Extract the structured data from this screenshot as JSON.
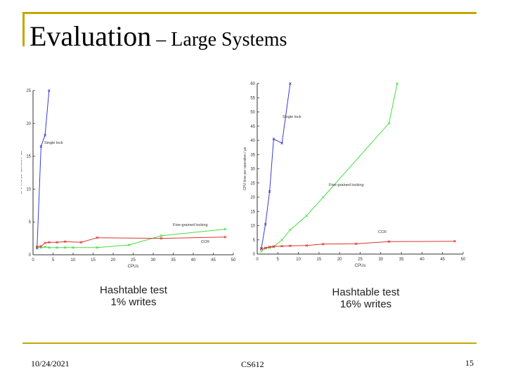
{
  "slide": {
    "title_main": "Evaluation",
    "title_rest": " – Large Systems",
    "caption_left_line1": "Hashtable test",
    "caption_left_line2": "1% writes",
    "caption_right_line1": "Hashtable test",
    "caption_right_line2": "16% writes",
    "footer_date": "10/24/2021",
    "footer_course": "CS612",
    "footer_page": "15"
  },
  "chart_data": [
    {
      "type": "line",
      "title": "",
      "xlabel": "CPUs",
      "ylabel": "CPU time per operation / µs",
      "xlim": [
        0,
        50
      ],
      "ylim": [
        0,
        25
      ],
      "xticks": [
        0,
        5,
        10,
        15,
        20,
        25,
        30,
        35,
        40,
        45,
        50
      ],
      "yticks": [
        0,
        5,
        10,
        15,
        20,
        25
      ],
      "grid": false,
      "series": [
        {
          "name": "Single lock",
          "color": "#3a3ad6",
          "x": [
            1,
            2,
            3,
            4
          ],
          "y": [
            1,
            16.5,
            18.2,
            25
          ]
        },
        {
          "name": "Fine-grained locking",
          "color": "#44dd44",
          "x": [
            1,
            2,
            3,
            4,
            6,
            8,
            10,
            16,
            24,
            32,
            48
          ],
          "y": [
            1.1,
            1.1,
            1.2,
            1.1,
            1.1,
            1.1,
            1.1,
            1.1,
            1.5,
            2.9,
            3.9
          ]
        },
        {
          "name": "CCR",
          "color": "#dd3333",
          "x": [
            1,
            2,
            3,
            4,
            6,
            8,
            12,
            16,
            32,
            48
          ],
          "y": [
            1.2,
            1.3,
            1.8,
            1.9,
            1.9,
            2.0,
            1.9,
            2.6,
            2.5,
            2.7
          ]
        }
      ]
    },
    {
      "type": "line",
      "title": "",
      "xlabel": "CPUs",
      "ylabel": "CPU time per operation / µs",
      "xlim": [
        0,
        50
      ],
      "ylim": [
        0,
        60
      ],
      "xticks": [
        0,
        5,
        10,
        15,
        20,
        25,
        30,
        35,
        40,
        45,
        50
      ],
      "yticks": [
        0,
        5,
        10,
        15,
        20,
        25,
        30,
        35,
        40,
        45,
        50,
        55,
        60
      ],
      "grid": false,
      "series": [
        {
          "name": "Single lock",
          "color": "#3a3ad6",
          "x": [
            1,
            2,
            3,
            4,
            6,
            8
          ],
          "y": [
            2,
            10.5,
            22,
            40.5,
            39,
            60
          ]
        },
        {
          "name": "Fine-grained locking",
          "color": "#44dd44",
          "x": [
            1,
            2,
            3,
            4,
            6,
            8,
            12,
            16,
            32,
            34
          ],
          "y": [
            1,
            2,
            2.3,
            2.5,
            5,
            8.5,
            13.5,
            20,
            46,
            60
          ]
        },
        {
          "name": "CCR",
          "color": "#dd3333",
          "x": [
            1,
            2,
            3,
            4,
            6,
            8,
            12,
            16,
            24,
            32,
            48
          ],
          "y": [
            1.8,
            2.2,
            2.5,
            2.7,
            2.8,
            2.9,
            3.0,
            3.5,
            3.6,
            4.4,
            4.5
          ]
        }
      ]
    }
  ]
}
